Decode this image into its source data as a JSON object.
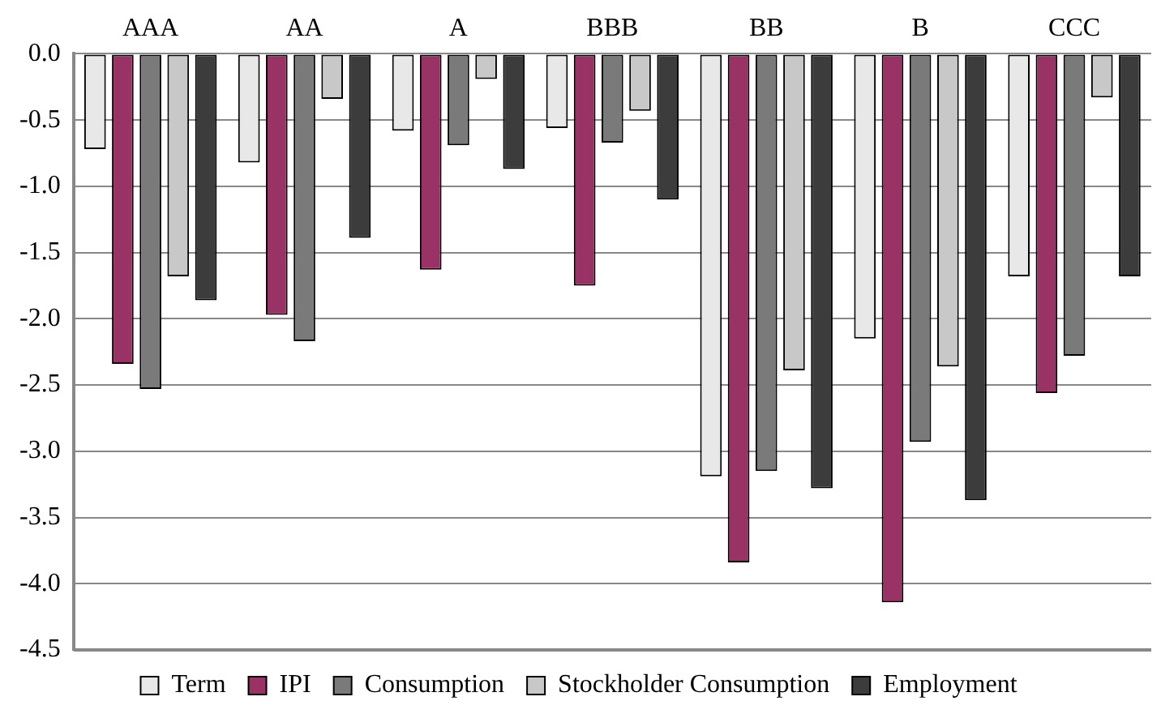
{
  "chart_data": {
    "type": "bar",
    "categories": [
      "AAA",
      "AA",
      "A",
      "BBB",
      "BB",
      "B",
      "CCC"
    ],
    "series": [
      {
        "name": "Term",
        "color": "#e8e8e8",
        "values": [
          -0.72,
          -0.82,
          -0.58,
          -0.56,
          -3.19,
          -2.15,
          -1.68
        ]
      },
      {
        "name": "IPI",
        "color": "#993366",
        "values": [
          -2.34,
          -1.97,
          -1.63,
          -1.75,
          -3.84,
          -4.14,
          -2.56
        ]
      },
      {
        "name": "Consumption",
        "color": "#7a7a7a",
        "values": [
          -2.53,
          -2.17,
          -0.69,
          -0.67,
          -3.15,
          -2.93,
          -2.28
        ]
      },
      {
        "name": "Stockholder Consumption",
        "color": "#c8c8c8",
        "values": [
          -1.68,
          -0.34,
          -0.19,
          -0.43,
          -2.39,
          -2.36,
          -0.33
        ]
      },
      {
        "name": "Employment",
        "color": "#3c3c3c",
        "values": [
          -1.86,
          -1.39,
          -0.87,
          -1.1,
          -3.28,
          -3.37,
          -1.68
        ]
      }
    ],
    "ylim": [
      -4.5,
      0
    ],
    "yticks": [
      {
        "value": 0,
        "label": "0.0"
      },
      {
        "value": -0.5,
        "label": "-0.5"
      },
      {
        "value": -1,
        "label": "-1.0"
      },
      {
        "value": -1.5,
        "label": "-1.5"
      },
      {
        "value": -2,
        "label": "-2.0"
      },
      {
        "value": -2.5,
        "label": "-2.5"
      },
      {
        "value": -3,
        "label": "-3.0"
      },
      {
        "value": -3.5,
        "label": "-3.5"
      },
      {
        "value": -4,
        "label": "-4.0"
      },
      {
        "value": -4.5,
        "label": "-4.5"
      }
    ],
    "grid": "y",
    "legend": "bottom"
  }
}
